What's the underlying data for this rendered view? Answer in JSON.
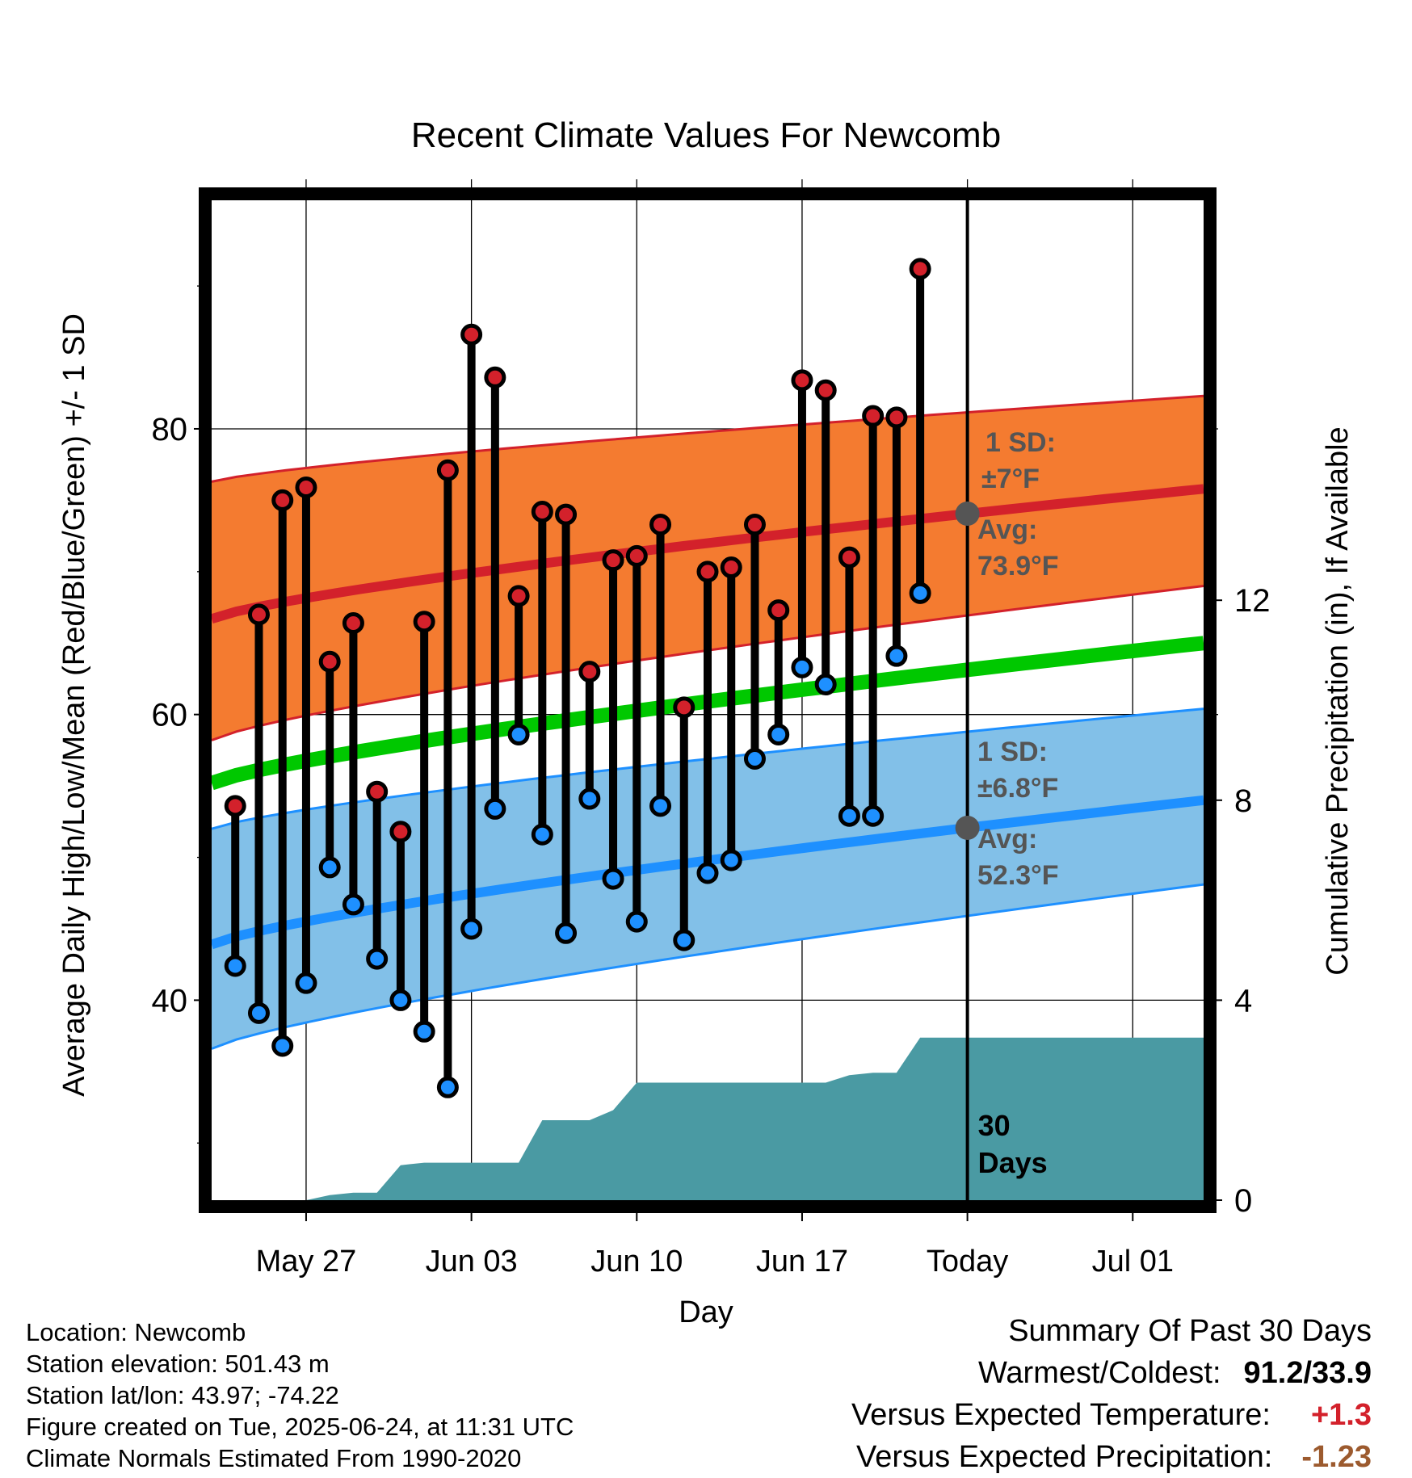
{
  "chart_data": {
    "type": "line",
    "title": "Recent Climate Values For Newcomb",
    "xlabel": "Day",
    "ylabel": "Average Daily High/Low/Mean (Red/Blue/Green) +/- 1 SD",
    "y2label": "Cumulative Precipitation (in), If Available",
    "xlim": [
      "2025-05-23",
      "2025-07-04"
    ],
    "ylim": [
      26,
      96
    ],
    "y2lim": [
      0,
      20
    ],
    "x_tick_labels": [
      "May 27",
      "Jun 03",
      "Jun 10",
      "Jun 17",
      "Today",
      "Jul 01"
    ],
    "x_tick_dates": [
      "2025-05-27",
      "2025-06-03",
      "2025-06-10",
      "2025-06-17",
      "2025-06-24",
      "2025-07-01"
    ],
    "y_ticks": [
      40,
      60,
      80
    ],
    "y_tick_labels": [
      "40",
      "60",
      "80"
    ],
    "y2_ticks": [
      0,
      4,
      8,
      12
    ],
    "y2_tick_labels": [
      "0",
      "4",
      "8",
      "12"
    ],
    "grid": true,
    "today": "2025-06-24",
    "days_label": "30\nDays",
    "high_band_annotation": {
      "sd_label": "1 SD:",
      "sd_value": "±7°F",
      "avg_label": "Avg:",
      "avg_value": "73.9°F"
    },
    "low_band_annotation": {
      "sd_label": "1 SD:",
      "sd_value": "±6.8°F",
      "avg_label": "Avg:",
      "avg_value": "52.3°F"
    },
    "normals": {
      "dates": [
        "2025-05-23",
        "2025-07-04"
      ],
      "high_mean": [
        66.7,
        75.8
      ],
      "high_upper": [
        76.3,
        82.3
      ],
      "high_lower": [
        58.2,
        69.0
      ],
      "daily_mean": [
        55.2,
        65.0
      ],
      "low_mean": [
        43.9,
        54.0
      ],
      "low_upper": [
        52.0,
        60.4
      ],
      "low_lower": [
        36.6,
        48.1
      ]
    },
    "observed": {
      "dates": [
        "2025-05-24",
        "2025-05-25",
        "2025-05-26",
        "2025-05-27",
        "2025-05-28",
        "2025-05-29",
        "2025-05-30",
        "2025-05-31",
        "2025-06-01",
        "2025-06-02",
        "2025-06-03",
        "2025-06-04",
        "2025-06-05",
        "2025-06-06",
        "2025-06-07",
        "2025-06-08",
        "2025-06-09",
        "2025-06-10",
        "2025-06-11",
        "2025-06-12",
        "2025-06-13",
        "2025-06-14",
        "2025-06-15",
        "2025-06-16",
        "2025-06-17",
        "2025-06-18",
        "2025-06-19",
        "2025-06-20",
        "2025-06-21",
        "2025-06-22",
        "2025-06-23"
      ],
      "high": [
        53.6,
        67.0,
        75.0,
        75.9,
        63.7,
        66.4,
        54.6,
        51.8,
        66.5,
        77.1,
        86.6,
        83.6,
        68.3,
        74.2,
        74.0,
        63.0,
        70.8,
        71.1,
        73.3,
        60.5,
        70.0,
        70.3,
        73.3,
        67.3,
        83.4,
        82.7,
        71.0,
        80.9,
        80.8,
        91.2,
        null
      ],
      "low": [
        42.4,
        39.1,
        36.8,
        41.2,
        49.3,
        46.7,
        42.9,
        40.0,
        37.8,
        33.9,
        45.0,
        53.4,
        58.6,
        51.6,
        44.7,
        54.1,
        48.5,
        45.5,
        53.6,
        44.2,
        48.9,
        49.8,
        56.9,
        58.6,
        63.3,
        62.1,
        52.9,
        52.9,
        64.1,
        68.5,
        null
      ]
    },
    "precip_cumulative": {
      "dates": [
        "2025-05-24",
        "2025-05-25",
        "2025-05-26",
        "2025-05-27",
        "2025-05-28",
        "2025-05-29",
        "2025-05-30",
        "2025-05-31",
        "2025-06-01",
        "2025-06-02",
        "2025-06-03",
        "2025-06-04",
        "2025-06-05",
        "2025-06-06",
        "2025-06-07",
        "2025-06-08",
        "2025-06-09",
        "2025-06-10",
        "2025-06-11",
        "2025-06-12",
        "2025-06-13",
        "2025-06-14",
        "2025-06-15",
        "2025-06-16",
        "2025-06-17",
        "2025-06-18",
        "2025-06-19",
        "2025-06-20",
        "2025-06-21",
        "2025-06-22",
        "2025-06-23",
        "2025-06-24",
        "2025-07-04"
      ],
      "values": [
        0.0,
        0.0,
        0.0,
        0.0,
        0.1,
        0.15,
        0.15,
        0.7,
        0.75,
        0.75,
        0.75,
        0.75,
        0.75,
        1.6,
        1.6,
        1.6,
        1.8,
        2.35,
        2.35,
        2.35,
        2.35,
        2.35,
        2.35,
        2.35,
        2.35,
        2.35,
        2.5,
        2.55,
        2.55,
        3.25,
        3.25,
        3.25,
        3.25
      ]
    }
  },
  "colors": {
    "high_band": "#f47b30",
    "high_line": "#d3212b",
    "daily_mean_line": "#00c800",
    "low_band": "#82c0e8",
    "low_line": "#1e90ff",
    "precip_fill": "#4a9aa3",
    "annotation_text": "#555555",
    "high_dot": "#d3212b",
    "low_dot": "#1e90ff",
    "today_dot": "#555555"
  },
  "info": {
    "location": "Location: Newcomb",
    "elevation": "Station elevation: 501.43 m",
    "latlon": "Station lat/lon: 43.97; -74.22",
    "created": "Figure created on Tue, 2025-06-24, at 11:31 UTC",
    "normals": "Climate Normals Estimated From 1990-2020"
  },
  "summary": {
    "heading": "Summary Of Past 30 Days",
    "warm_cold_label": "Warmest/Coldest:",
    "warm_cold_value": "91.2/33.9",
    "temp_label": "Versus Expected Temperature:",
    "temp_value": "+1.3",
    "precip_label": "Versus Expected Precipitation:",
    "precip_value": "-1.23"
  }
}
